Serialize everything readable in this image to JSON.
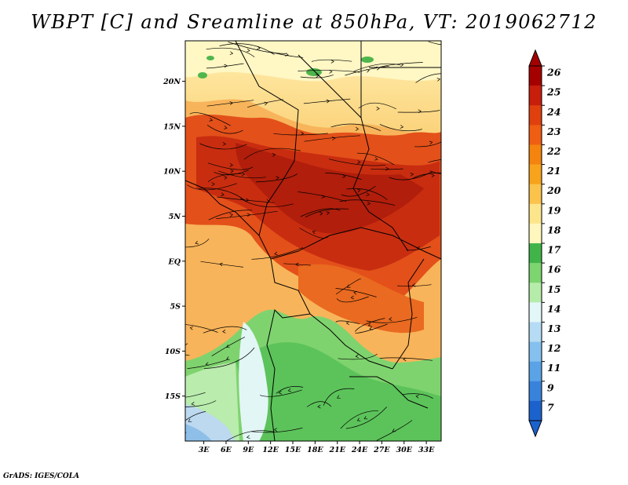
{
  "title": "WBPT [C] and Sreamline at 850hPa, VT: 2019062712",
  "credit": "GrADS: IGES/COLA",
  "map": {
    "lat_ticks": [
      "20N",
      "15N",
      "10N",
      "5N",
      "EQ",
      "5S",
      "10S",
      "15S"
    ],
    "lat_values": [
      20,
      15,
      10,
      5,
      0,
      -5,
      -10,
      -15
    ],
    "lon_ticks": [
      "3E",
      "6E",
      "9E",
      "12E",
      "15E",
      "18E",
      "21E",
      "24E",
      "27E",
      "30E",
      "33E"
    ],
    "lon_values": [
      3,
      6,
      9,
      12,
      15,
      18,
      21,
      24,
      27,
      30,
      33
    ],
    "lon_range": [
      0.5,
      35
    ],
    "lat_range": [
      -20,
      24.5
    ]
  },
  "colorbar": {
    "labels": [
      "26",
      "25",
      "24",
      "23",
      "22",
      "21",
      "20",
      "19",
      "18",
      "17",
      "16",
      "15",
      "14",
      "13",
      "12",
      "11",
      "9",
      "7"
    ],
    "colors": [
      "#a50000",
      "#c81e0c",
      "#e0400e",
      "#ef5e12",
      "#f5840e",
      "#f8a31c",
      "#fbc34c",
      "#fde58c",
      "#fff7be",
      "#41b449",
      "#7cd56e",
      "#b6ecaa",
      "#e3f7f9",
      "#b6dbf5",
      "#86c0ef",
      "#5aa3e6",
      "#3982dc",
      "#1c62cd"
    ]
  }
}
